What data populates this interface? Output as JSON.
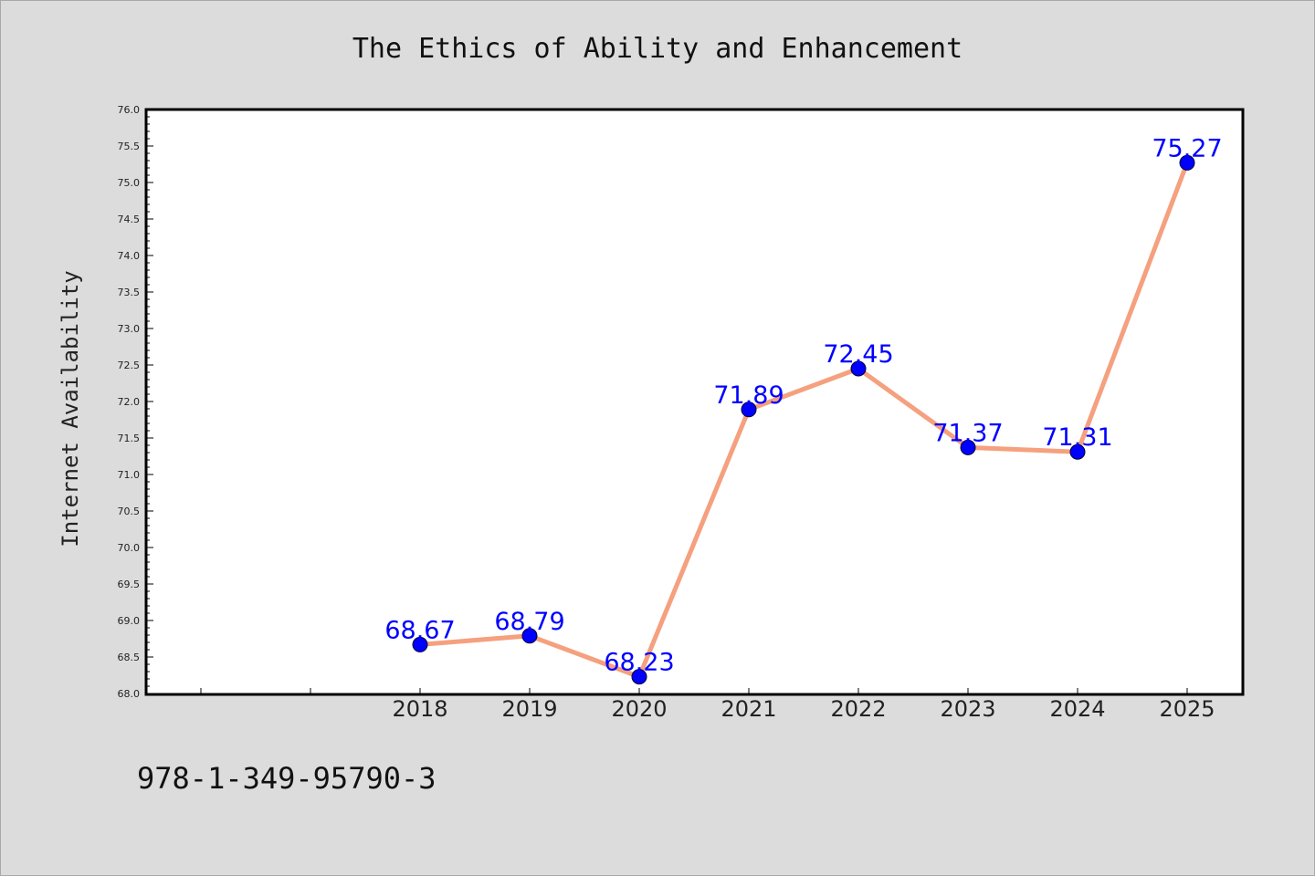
{
  "chart_data": {
    "type": "line",
    "title": "The Ethics of Ability and Enhancement",
    "xlabel": "",
    "ylabel": "Internet Availability",
    "categories": [
      "2018",
      "2019",
      "2020",
      "2021",
      "2022",
      "2023",
      "2024",
      "2025"
    ],
    "series": [
      {
        "values": [
          68.67,
          68.79,
          68.23,
          71.89,
          72.45,
          71.37,
          71.31,
          75.27
        ],
        "data_labels": [
          "68.67",
          "68.79",
          "68.23",
          "71.89",
          "72.45",
          "71.37",
          "71.31",
          "75.27"
        ],
        "line_color": "#f5a07e",
        "marker_color": "#0000ff"
      }
    ],
    "ylim": [
      68.0,
      76.0
    ],
    "ytick_labels": [
      "68.0",
      "68.5",
      "69.0",
      "69.5",
      "70.0",
      "70.5",
      "71.0",
      "71.5",
      "72.0",
      "72.5",
      "73.0",
      "73.5",
      "74.0",
      "74.5",
      "75.0",
      "75.5",
      "76.0"
    ],
    "grid": false,
    "legend": "none",
    "data_label_color": "#0000ff"
  },
  "footer": {
    "isbn": "978-1-349-95790-3"
  },
  "colors": {
    "background": "#dcdcdc",
    "plot_area": "#ffffff"
  }
}
